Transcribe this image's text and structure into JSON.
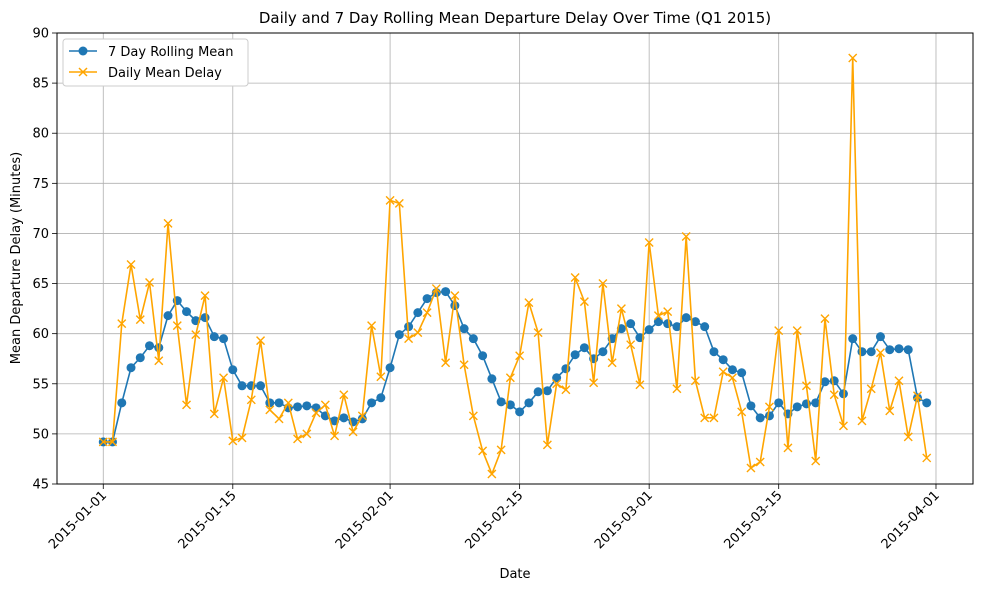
{
  "chart_data": {
    "type": "line",
    "title": "Daily and 7 Day Rolling Mean Departure Delay Over Time (Q1 2015)",
    "xlabel": "Date",
    "ylabel": "Mean Departure Delay (Minutes)",
    "xlim": [
      "2014-12-27",
      "2015-04-05"
    ],
    "ylim": [
      45,
      90
    ],
    "grid": true,
    "legend_placement": "top-left",
    "x_ticks": [
      "2015-01-01",
      "2015-01-15",
      "2015-02-01",
      "2015-02-15",
      "2015-03-01",
      "2015-03-15",
      "2015-04-01"
    ],
    "y_ticks": [
      "45",
      "50",
      "55",
      "60",
      "65",
      "70",
      "75",
      "80",
      "85",
      "90"
    ],
    "x_start": "2015-01-01",
    "series": [
      {
        "name": "7 Day Rolling Mean",
        "color": "#1f77b4",
        "marker": "circle",
        "values": [
          49.2,
          49.2,
          53.1,
          56.6,
          57.6,
          58.8,
          58.6,
          61.8,
          63.3,
          62.2,
          61.3,
          61.6,
          59.7,
          59.5,
          56.4,
          54.8,
          54.8,
          54.8,
          53.1,
          53.1,
          52.6,
          52.7,
          52.8,
          52.6,
          51.8,
          51.3,
          51.6,
          51.2,
          51.5,
          53.1,
          53.6,
          56.6,
          59.9,
          60.7,
          62.1,
          63.5,
          64.1,
          64.2,
          62.8,
          60.5,
          59.5,
          57.8,
          55.5,
          53.2,
          52.9,
          52.2,
          53.1,
          54.2,
          54.3,
          55.6,
          56.5,
          57.9,
          58.6,
          57.5,
          58.2,
          59.5,
          60.5,
          61.0,
          59.6,
          60.4,
          61.2,
          61.0,
          60.7,
          61.6,
          61.2,
          60.7,
          58.2,
          57.4,
          56.4,
          56.1,
          52.8,
          51.6,
          51.8,
          53.1,
          52.0,
          52.7,
          53.0,
          53.1,
          55.2,
          55.3,
          54.0,
          59.5,
          58.2,
          58.2,
          59.7,
          58.4,
          58.5,
          58.4,
          53.6,
          53.1
        ]
      },
      {
        "name": "Daily Mean Delay",
        "color": "#ffa500",
        "marker": "x",
        "values": [
          49.2,
          49.2,
          61.0,
          66.9,
          61.4,
          65.1,
          57.3,
          71.0,
          60.8,
          52.9,
          59.9,
          63.8,
          52.0,
          55.6,
          49.3,
          49.6,
          53.4,
          59.3,
          52.4,
          51.5,
          53.1,
          49.5,
          50.0,
          52.1,
          52.9,
          49.8,
          53.9,
          50.2,
          51.8,
          60.8,
          55.7,
          73.3,
          73.0,
          59.5,
          60.1,
          62.1,
          64.5,
          57.1,
          63.8,
          56.9,
          51.8,
          48.3,
          46.0,
          48.4,
          55.6,
          57.8,
          63.1,
          60.1,
          48.9,
          55.0,
          54.4,
          65.6,
          63.2,
          55.1,
          65.0,
          57.1,
          62.5,
          58.9,
          54.9,
          69.1,
          61.8,
          62.2,
          54.5,
          69.7,
          55.3,
          51.6,
          51.6,
          56.2,
          55.6,
          52.2,
          46.6,
          47.2,
          52.7,
          60.3,
          48.6,
          60.3,
          54.8,
          47.3,
          61.5,
          53.9,
          50.8,
          87.5,
          51.3,
          54.5,
          58.1,
          52.3,
          55.3,
          49.7,
          53.8,
          47.6
        ]
      }
    ]
  }
}
